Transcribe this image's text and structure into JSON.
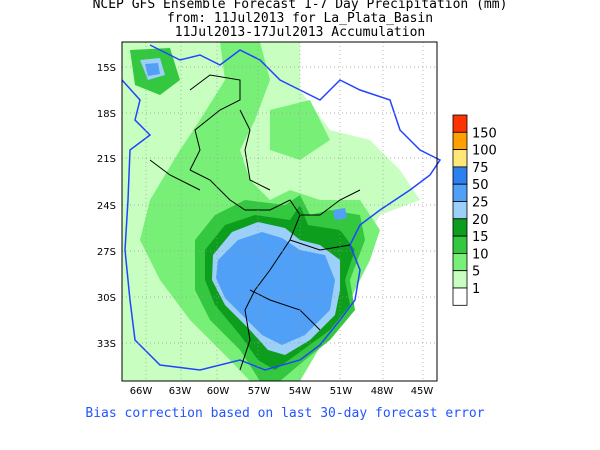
{
  "title": {
    "line1": "NCEP GFS Ensemble Forecast 1-7 Day Precipitation (mm)",
    "line2": "from: 11Jul2013   for La_Plata_Basin",
    "line3": "11Jul2013-17Jul2013 Accumulation"
  },
  "map": {
    "region": "La Plata Basin",
    "lon_ticks": [
      "66W",
      "63W",
      "60W",
      "57W",
      "54W",
      "51W",
      "48W",
      "45W"
    ],
    "lat_ticks": [
      "15S",
      "18S",
      "21S",
      "24S",
      "27S",
      "30S",
      "33S"
    ],
    "coastline_color": "#2244ff",
    "border_color": "#000000"
  },
  "legend": {
    "labels": [
      "150",
      "100",
      "75",
      "50",
      "25",
      "20",
      "15",
      "10",
      "5",
      "1"
    ],
    "colors": [
      "#ff3300",
      "#ffa000",
      "#ffe878",
      "#2c80f0",
      "#50a0f8",
      "#9cd0f8",
      "#0e9e1e",
      "#34c840",
      "#78f078",
      "#c8ffc0",
      "#ffffff"
    ]
  },
  "footer": "Bias correction based on last 30-day forecast error"
}
